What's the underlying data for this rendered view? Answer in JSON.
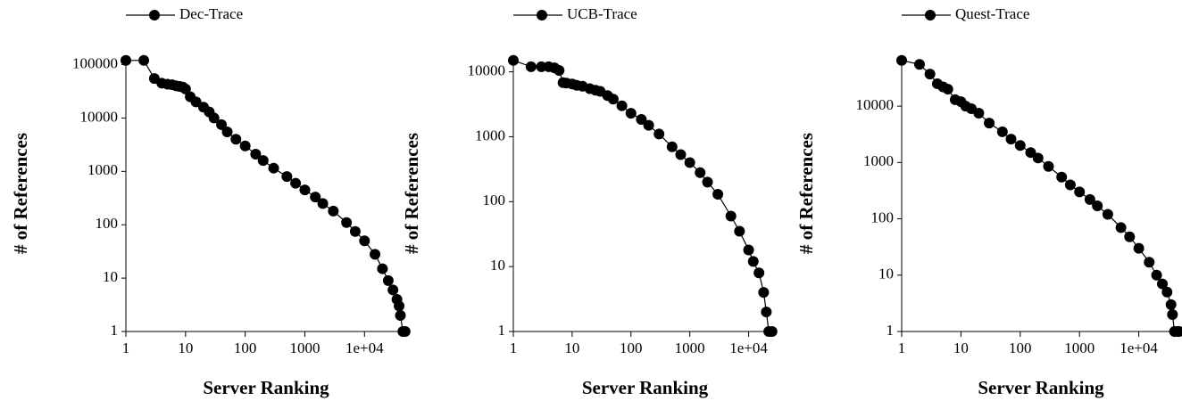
{
  "chart_data": [
    {
      "type": "line",
      "xlabel": "Server Ranking",
      "ylabel": "# of References",
      "xscale": "log",
      "yscale": "log",
      "legend": "top",
      "xlim": [
        1,
        50000
      ],
      "ylim": [
        1,
        150000
      ],
      "xticks": [
        1,
        10,
        100,
        1000,
        {
          "value": 10000,
          "label": "1e+04"
        }
      ],
      "yticks": [
        1,
        10,
        100,
        1000,
        10000,
        100000
      ],
      "x": [
        1,
        2,
        3,
        4,
        5,
        6,
        7,
        8,
        9,
        10,
        12,
        15,
        20,
        25,
        30,
        40,
        50,
        70,
        100,
        150,
        200,
        300,
        500,
        700,
        1000,
        1500,
        2000,
        3000,
        5000,
        7000,
        10000,
        15000,
        20000,
        25000,
        30000,
        35000,
        38000,
        40000,
        44000,
        48000
      ],
      "series": [
        {
          "name": "Dec-Trace",
          "color": "#000000",
          "values": [
            120000,
            120000,
            55000,
            45000,
            43000,
            42000,
            40000,
            39000,
            38000,
            35000,
            25000,
            20000,
            16000,
            13000,
            10000,
            7500,
            5500,
            4000,
            3000,
            2100,
            1600,
            1150,
            800,
            600,
            450,
            330,
            250,
            180,
            110,
            75,
            50,
            28,
            15,
            9,
            6,
            4,
            3,
            2,
            1,
            1
          ]
        }
      ]
    },
    {
      "type": "line",
      "xlabel": "Server Ranking",
      "ylabel": "# of References",
      "xscale": "log",
      "yscale": "log",
      "legend": "top",
      "xlim": [
        1,
        30000
      ],
      "ylim": [
        1,
        18000
      ],
      "xticks": [
        1,
        10,
        100,
        1000,
        {
          "value": 10000,
          "label": "1e+04"
        }
      ],
      "yticks": [
        1,
        10,
        100,
        1000,
        10000
      ],
      "x": [
        1,
        2,
        3,
        4,
        5,
        6,
        7,
        8,
        10,
        12,
        15,
        20,
        25,
        30,
        40,
        50,
        70,
        100,
        150,
        200,
        300,
        500,
        700,
        1000,
        1500,
        2000,
        3000,
        5000,
        7000,
        10000,
        12000,
        15000,
        18000,
        20000,
        22000,
        25000
      ],
      "series": [
        {
          "name": "UCB-Trace",
          "color": "#000000",
          "values": [
            15000,
            12000,
            12000,
            12000,
            11500,
            10500,
            6800,
            6700,
            6500,
            6200,
            6000,
            5500,
            5200,
            5000,
            4300,
            3800,
            3000,
            2300,
            1850,
            1500,
            1100,
            700,
            530,
            400,
            280,
            200,
            130,
            60,
            35,
            18,
            12,
            8,
            4,
            2,
            1,
            1
          ]
        }
      ]
    },
    {
      "type": "line",
      "xlabel": "Server Ranking",
      "ylabel": "# of References",
      "xscale": "log",
      "yscale": "log",
      "legend": "top",
      "xlim": [
        1,
        50000
      ],
      "ylim": [
        1,
        80000
      ],
      "xticks": [
        1,
        10,
        100,
        1000,
        {
          "value": 10000,
          "label": "1e+04"
        }
      ],
      "yticks": [
        1,
        10,
        100,
        1000,
        10000
      ],
      "x": [
        1,
        2,
        3,
        4,
        5,
        6,
        8,
        10,
        12,
        15,
        20,
        30,
        50,
        70,
        100,
        150,
        200,
        300,
        500,
        700,
        1000,
        1500,
        2000,
        3000,
        5000,
        7000,
        10000,
        15000,
        20000,
        25000,
        30000,
        35000,
        37000,
        40000,
        45000,
        48000
      ],
      "series": [
        {
          "name": "Quest-Trace",
          "color": "#000000",
          "values": [
            65000,
            55000,
            37000,
            25000,
            22000,
            20000,
            13000,
            12000,
            10000,
            9000,
            7500,
            5000,
            3500,
            2600,
            2000,
            1500,
            1200,
            850,
            550,
            400,
            300,
            220,
            170,
            120,
            70,
            48,
            30,
            17,
            10,
            7,
            5,
            3,
            2,
            1,
            1,
            1
          ]
        }
      ]
    }
  ]
}
